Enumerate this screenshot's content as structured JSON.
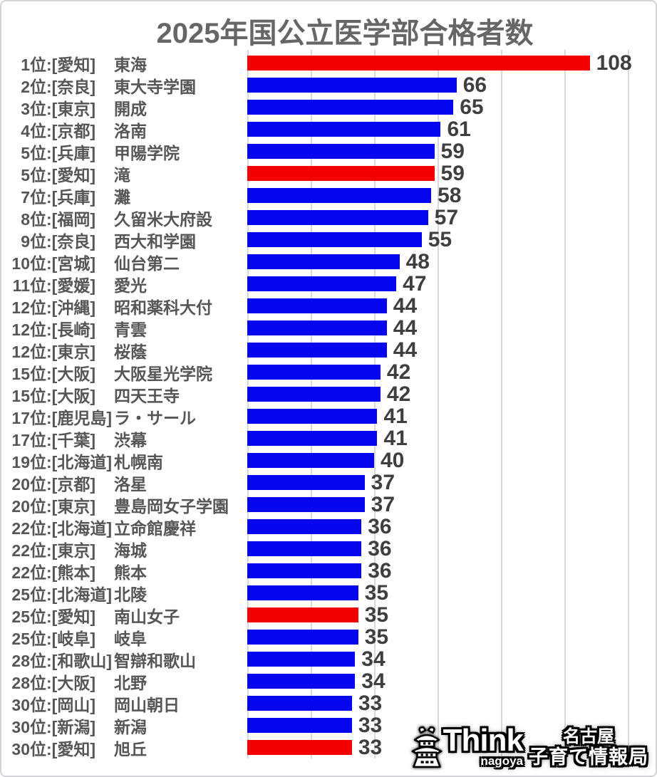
{
  "title": "2025年国公立医学部合格者数",
  "format": {
    "rank_suffix": "位:",
    "pref_brackets": [
      "[",
      "]"
    ]
  },
  "chart_data": {
    "type": "bar",
    "orientation": "horizontal",
    "title": "2025年国公立医学部合格者数",
    "xlabel": "",
    "ylabel": "",
    "xlim": [
      0,
      120
    ],
    "gridline_interval": 20,
    "grid": true,
    "bar_colors": {
      "default": "#0505ee",
      "highlight": "#f50000"
    },
    "rows": [
      {
        "rank": "1",
        "pref": "愛知",
        "school": "東海",
        "value": 108,
        "highlight": true
      },
      {
        "rank": "2",
        "pref": "奈良",
        "school": "東大寺学園",
        "value": 66,
        "highlight": false
      },
      {
        "rank": "3",
        "pref": "東京",
        "school": "開成",
        "value": 65,
        "highlight": false
      },
      {
        "rank": "4",
        "pref": "京都",
        "school": "洛南",
        "value": 61,
        "highlight": false
      },
      {
        "rank": "5",
        "pref": "兵庫",
        "school": "甲陽学院",
        "value": 59,
        "highlight": false
      },
      {
        "rank": "5",
        "pref": "愛知",
        "school": "滝",
        "value": 59,
        "highlight": true
      },
      {
        "rank": "7",
        "pref": "兵庫",
        "school": "灘",
        "value": 58,
        "highlight": false
      },
      {
        "rank": "8",
        "pref": "福岡",
        "school": "久留米大府設",
        "value": 57,
        "highlight": false
      },
      {
        "rank": "9",
        "pref": "奈良",
        "school": "西大和学園",
        "value": 55,
        "highlight": false
      },
      {
        "rank": "10",
        "pref": "宮城",
        "school": "仙台第二",
        "value": 48,
        "highlight": false
      },
      {
        "rank": "11",
        "pref": "愛媛",
        "school": "愛光",
        "value": 47,
        "highlight": false
      },
      {
        "rank": "12",
        "pref": "沖縄",
        "school": "昭和薬科大付",
        "value": 44,
        "highlight": false
      },
      {
        "rank": "12",
        "pref": "長崎",
        "school": "青雲",
        "value": 44,
        "highlight": false
      },
      {
        "rank": "12",
        "pref": "東京",
        "school": "桜蔭",
        "value": 44,
        "highlight": false
      },
      {
        "rank": "15",
        "pref": "大阪",
        "school": "大阪星光学院",
        "value": 42,
        "highlight": false
      },
      {
        "rank": "15",
        "pref": "大阪",
        "school": "四天王寺",
        "value": 42,
        "highlight": false
      },
      {
        "rank": "17",
        "pref": "鹿児島",
        "school": "ラ・サール",
        "value": 41,
        "highlight": false
      },
      {
        "rank": "17",
        "pref": "千葉",
        "school": "渋幕",
        "value": 41,
        "highlight": false
      },
      {
        "rank": "19",
        "pref": "北海道",
        "school": "札幌南",
        "value": 40,
        "highlight": false
      },
      {
        "rank": "20",
        "pref": "京都",
        "school": "洛星",
        "value": 37,
        "highlight": false
      },
      {
        "rank": "20",
        "pref": "東京",
        "school": "豊島岡女子学園",
        "value": 37,
        "highlight": false
      },
      {
        "rank": "22",
        "pref": "北海道",
        "school": "立命館慶祥",
        "value": 36,
        "highlight": false
      },
      {
        "rank": "22",
        "pref": "東京",
        "school": "海城",
        "value": 36,
        "highlight": false
      },
      {
        "rank": "22",
        "pref": "熊本",
        "school": "熊本",
        "value": 36,
        "highlight": false
      },
      {
        "rank": "25",
        "pref": "北海道",
        "school": "北陵",
        "value": 35,
        "highlight": false
      },
      {
        "rank": "25",
        "pref": "愛知",
        "school": "南山女子",
        "value": 35,
        "highlight": true
      },
      {
        "rank": "25",
        "pref": "岐阜",
        "school": "岐阜",
        "value": 35,
        "highlight": false
      },
      {
        "rank": "28",
        "pref": "和歌山",
        "school": "智辯和歌山",
        "value": 34,
        "highlight": false
      },
      {
        "rank": "28",
        "pref": "大阪",
        "school": "北野",
        "value": 34,
        "highlight": false
      },
      {
        "rank": "30",
        "pref": "岡山",
        "school": "岡山朝日",
        "value": 33,
        "highlight": false
      },
      {
        "rank": "30",
        "pref": "新潟",
        "school": "新潟",
        "value": 33,
        "highlight": false
      },
      {
        "rank": "30",
        "pref": "愛知",
        "school": "旭丘",
        "value": 33,
        "highlight": true
      }
    ]
  },
  "logo": {
    "brand": "Think",
    "brand_sub": "nagoya",
    "tagline_line1": "名古屋",
    "tagline_line2": "子育て情報局",
    "icon": "nagoya-castle-icon"
  },
  "colors": {
    "title_text": "#666666",
    "label_text": "#565656",
    "value_text": "#3f3f3f",
    "gridline": "#d9d9d9",
    "border": "#d2d4d8"
  }
}
